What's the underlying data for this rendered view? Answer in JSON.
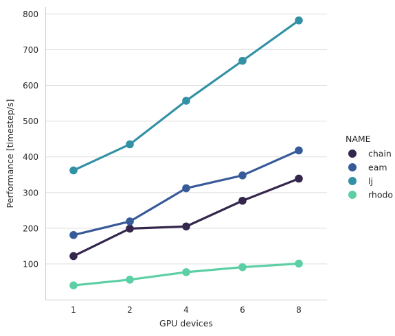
{
  "chart_data": {
    "type": "line",
    "title": "",
    "xlabel": "GPU devices",
    "ylabel": "Performance [timestep/s]",
    "categories": [
      "1",
      "2",
      "4",
      "6",
      "8"
    ],
    "ylim": [
      0,
      820
    ],
    "yticks": [
      100,
      200,
      300,
      400,
      500,
      600,
      700,
      800
    ],
    "grid": "horizontal",
    "legend": {
      "title": "NAME",
      "placement": "right"
    },
    "series": [
      {
        "name": "chain",
        "color": "#35264c",
        "values": [
          122,
          199,
          205,
          277,
          339
        ]
      },
      {
        "name": "eam",
        "color": "#375a98",
        "values": [
          181,
          219,
          312,
          348,
          418
        ]
      },
      {
        "name": "lj",
        "color": "#3391a5",
        "values": [
          362,
          435,
          557,
          669,
          782
        ]
      },
      {
        "name": "rhodo",
        "color": "#5ccfa5",
        "values": [
          40,
          56,
          77,
          91,
          101
        ]
      }
    ]
  }
}
